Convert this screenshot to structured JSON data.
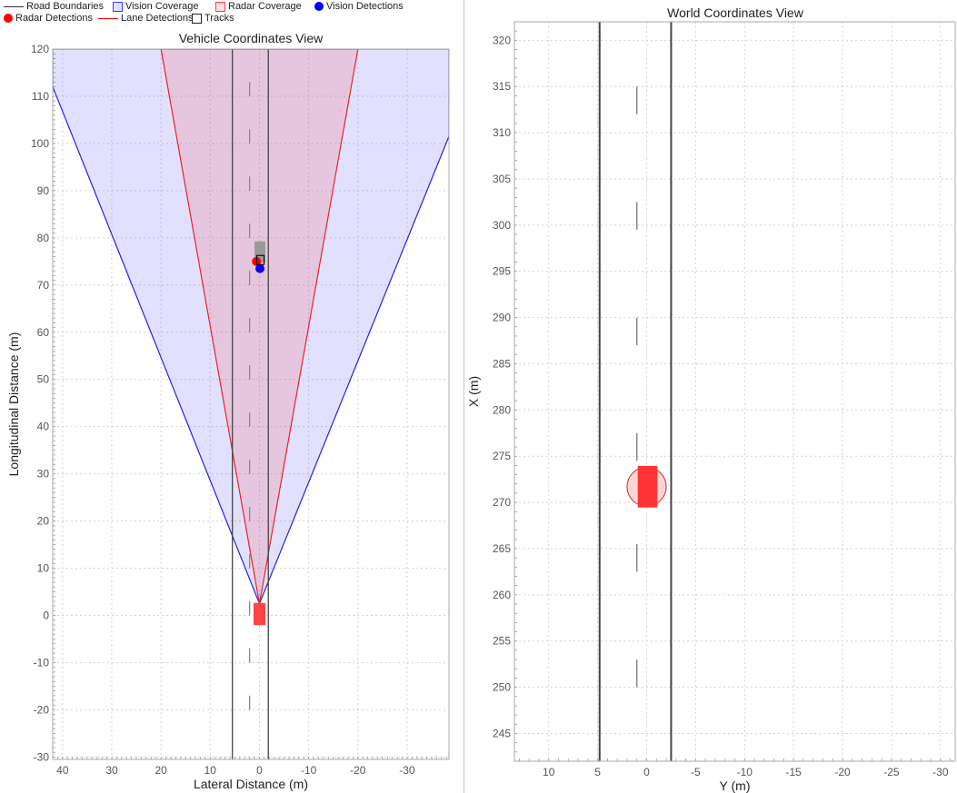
{
  "legend": {
    "items": [
      {
        "label": "Road Boundaries",
        "symbol": "line",
        "color": "#333333"
      },
      {
        "label": "Vision Coverage",
        "symbol": "box",
        "color": "#3a3aff",
        "fill": "#dfe0ff"
      },
      {
        "label": "Radar Coverage",
        "symbol": "box",
        "color": "#ff4040",
        "fill": "#ffe0e0"
      },
      {
        "label": "Vision Detections",
        "symbol": "dot",
        "color": "#0000ff"
      },
      {
        "label": "Radar Detections",
        "symbol": "dot",
        "color": "#ff0000"
      },
      {
        "label": "Lane Detections",
        "symbol": "line",
        "color": "#ff0000"
      },
      {
        "label": "Tracks",
        "symbol": "box",
        "color": "#222222",
        "fill": "#ffffff"
      }
    ]
  },
  "chart_data": [
    {
      "type": "scatter",
      "title": "Vehicle Coordinates View",
      "xlabel": "Lateral Distance (m)",
      "ylabel": "Longitudinal Distance (m)",
      "xlim": [
        42,
        -38.5
      ],
      "ylim": [
        -30.5,
        120
      ],
      "x_reversed": true,
      "xticks": [
        40,
        30,
        20,
        10,
        0,
        -10,
        -20,
        -30
      ],
      "xtick_labels": [
        "40",
        "30",
        "20",
        "10",
        "0",
        "-10",
        "-20",
        "-30"
      ],
      "yticks": [
        -30,
        -20,
        -10,
        0,
        10,
        20,
        30,
        40,
        50,
        60,
        70,
        80,
        90,
        100,
        110,
        120
      ],
      "ytick_labels": [
        "-30",
        "-20",
        "-10",
        "0",
        "10",
        "20",
        "30",
        "40",
        "50",
        "60",
        "70",
        "80",
        "90",
        "100",
        "110",
        "120"
      ],
      "grid": true,
      "vision_coverage": [
        [
          0,
          2.5
        ],
        [
          42,
          112
        ],
        [
          42,
          120
        ],
        [
          -38.5,
          120
        ],
        [
          -38.5,
          101.5
        ]
      ],
      "radar_coverage": [
        [
          0,
          2.5
        ],
        [
          20,
          120
        ],
        [
          -20,
          120
        ]
      ],
      "road_boundaries": [
        5.5,
        -1.8
      ],
      "lane_marking_x": 2,
      "lane_marking_dashes": [
        [
          -20,
          -17
        ],
        [
          -10,
          -7
        ],
        [
          0,
          3
        ],
        [
          10,
          13
        ],
        [
          20,
          23
        ],
        [
          30,
          33
        ],
        [
          40,
          43
        ],
        [
          50,
          53
        ],
        [
          60,
          63
        ],
        [
          70,
          73
        ],
        [
          80,
          83
        ],
        [
          90,
          93
        ],
        [
          100,
          103
        ],
        [
          110,
          113
        ]
      ],
      "lane_detections": [
        [
          [
            5.5,
            -30.5
          ],
          [
            5.5,
            120
          ]
        ],
        [
          [
            -1.8,
            -30.5
          ],
          [
            -1.8,
            120
          ]
        ]
      ],
      "ego_vehicle": {
        "x": 0,
        "y": 0,
        "length": 4.7,
        "width": 1.8
      },
      "target_vehicle": {
        "x": -0.2,
        "y": 77,
        "length": 4.5,
        "width": 1.8
      },
      "radar_detections": [
        {
          "x": 0.6,
          "y": 75
        }
      ],
      "vision_detections": [
        {
          "x": -0.1,
          "y": 73.5
        }
      ],
      "tracks": [
        {
          "x": -0.2,
          "y": 75.3
        }
      ]
    },
    {
      "type": "scatter",
      "title": "World Coordinates View",
      "xlabel": "Y (m)",
      "ylabel": "X (m)",
      "xlim": [
        13.5,
        -31.5
      ],
      "ylim": [
        242,
        322
      ],
      "x_reversed": true,
      "xticks": [
        10,
        5,
        0,
        -5,
        -10,
        -15,
        -20,
        -25,
        -30
      ],
      "xtick_labels": [
        "10",
        "5",
        "0",
        "-5",
        "-10",
        "-15",
        "-20",
        "-25",
        "-30"
      ],
      "yticks": [
        245,
        250,
        255,
        260,
        265,
        270,
        275,
        280,
        285,
        290,
        295,
        300,
        305,
        310,
        315,
        320
      ],
      "ytick_labels": [
        "245",
        "250",
        "255",
        "260",
        "265",
        "270",
        "275",
        "280",
        "285",
        "290",
        "295",
        "300",
        "305",
        "310",
        "315",
        "320"
      ],
      "grid": true,
      "road_boundaries": [
        4.8,
        -2.5
      ],
      "lane_marking_x": 1,
      "lane_marking_dashes": [
        [
          250,
          253
        ],
        [
          262.5,
          265.5
        ],
        [
          274.5,
          277.5
        ],
        [
          287,
          290
        ],
        [
          299.5,
          302.5
        ],
        [
          312,
          315
        ]
      ],
      "ego_vehicle": {
        "x": 0,
        "y": 271.7,
        "length": 4.5,
        "width": 2
      },
      "coverage_circle": {
        "x": 0,
        "y": 271.7,
        "radius": 2
      }
    }
  ]
}
